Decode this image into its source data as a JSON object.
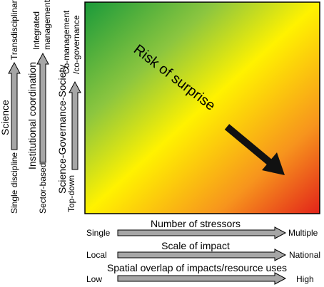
{
  "center_label": "Risk of surprise",
  "vertical_scales": [
    {
      "title": "Science",
      "low": "Single discipline",
      "high": "Transdisciplinary"
    },
    {
      "title": "Institutional coordination",
      "low": "Sector-based",
      "high_line1": "Integrated",
      "high_line2": "management"
    },
    {
      "title": "Science-Governance-Society",
      "low": "Top-down",
      "high_line1": "Co-management",
      "high_line2": "/co-governance"
    }
  ],
  "horizontal_scales": [
    {
      "title": "Number of stressors",
      "low": "Single",
      "high": "Multiple"
    },
    {
      "title": "Scale of impact",
      "low": "Local",
      "high": "National"
    },
    {
      "title": "Spatial overlap of impacts/resource uses",
      "low": "Low",
      "high": "High"
    }
  ],
  "colors": {
    "gradient_low": "#1a9a3a",
    "gradient_mid1": "#8cc63f",
    "gradient_mid2": "#fff200",
    "gradient_mid3": "#f7941d",
    "gradient_high": "#e2231a",
    "arrow_fill": "#a6a6a6",
    "arrow_stroke": "#000000",
    "risk_arrow": "#111111"
  }
}
